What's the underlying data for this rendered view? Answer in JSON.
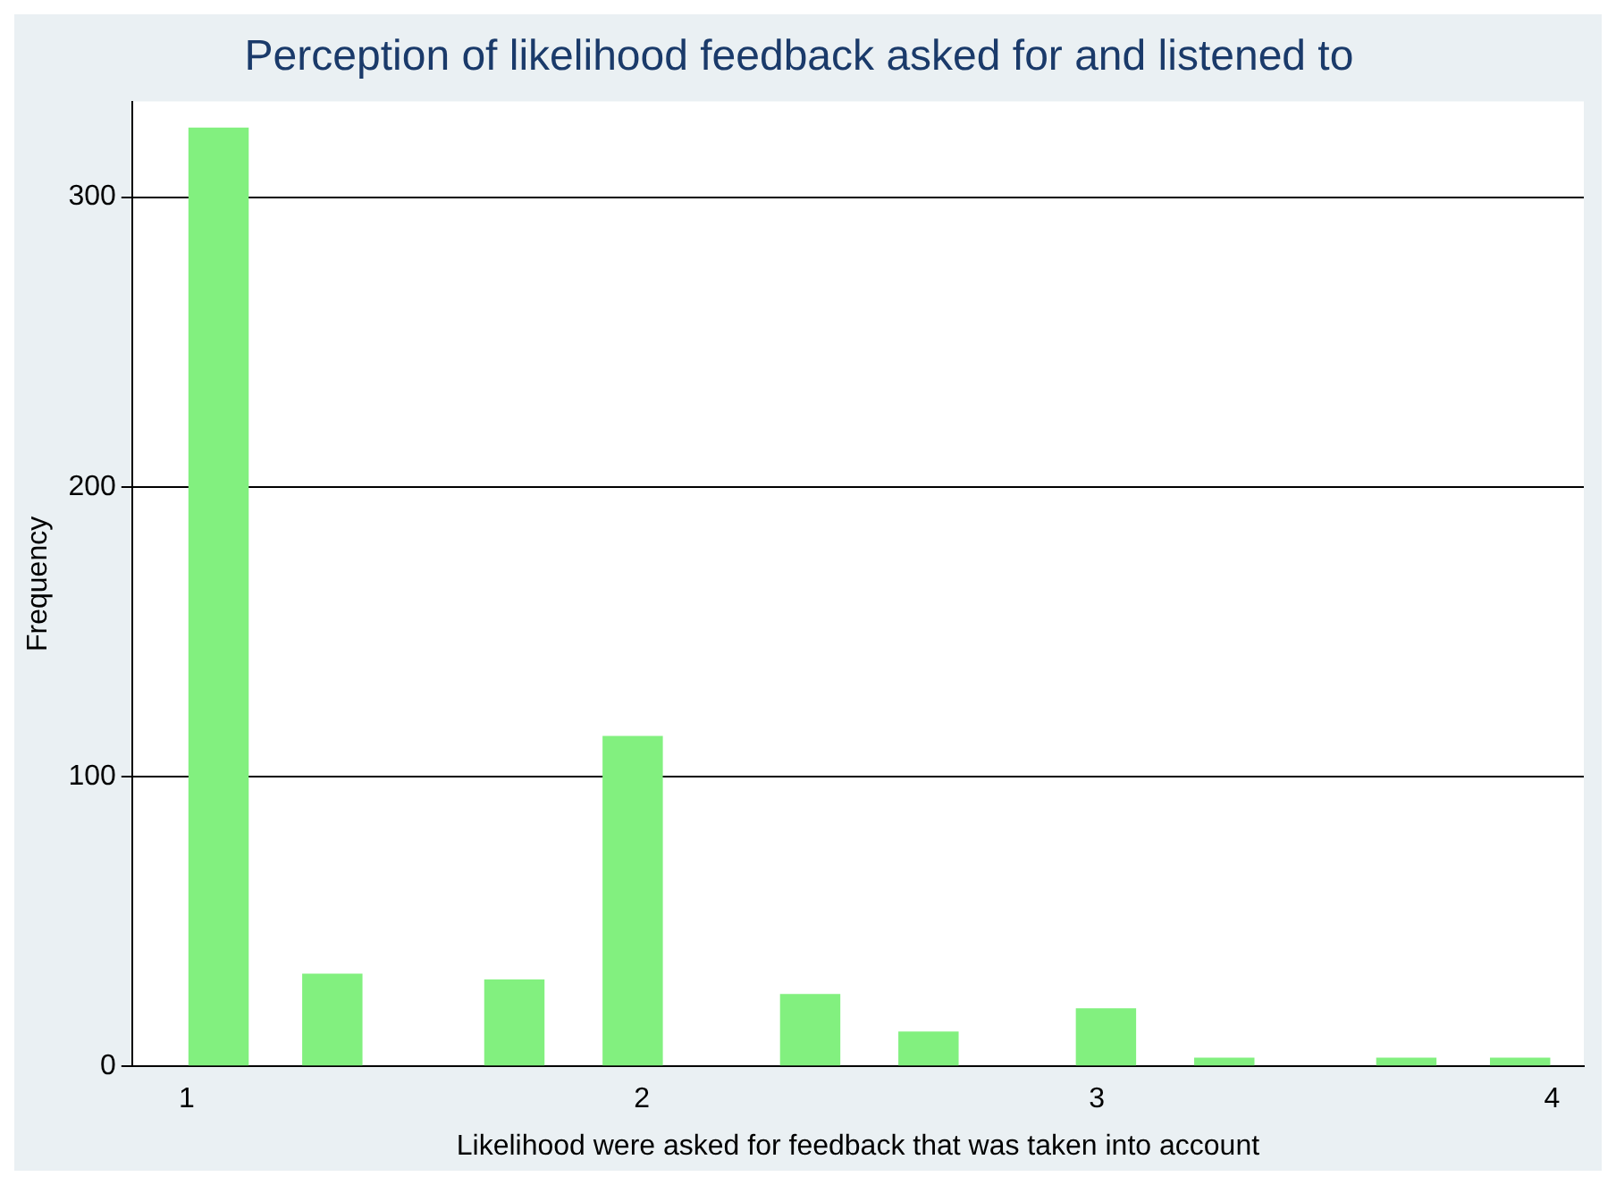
{
  "chart_data": {
    "type": "bar",
    "title": "Perception of likelihood feedback asked for and listened to",
    "xlabel": "Likelihood were asked for feedback that was taken into account",
    "ylabel": "Frequency",
    "x": [
      1.07,
      1.32,
      1.72,
      1.98,
      2.37,
      2.63,
      3.02,
      3.28,
      3.68,
      3.93
    ],
    "values": [
      324,
      32,
      30,
      114,
      25,
      12,
      20,
      3,
      3,
      3
    ],
    "color": "#82f07f",
    "xlim": [
      0.88,
      4.07
    ],
    "xticks": [
      1,
      2,
      3,
      4
    ],
    "ylim": [
      0,
      333
    ],
    "yticks": [
      0,
      100,
      200,
      300
    ],
    "grid": "y"
  }
}
